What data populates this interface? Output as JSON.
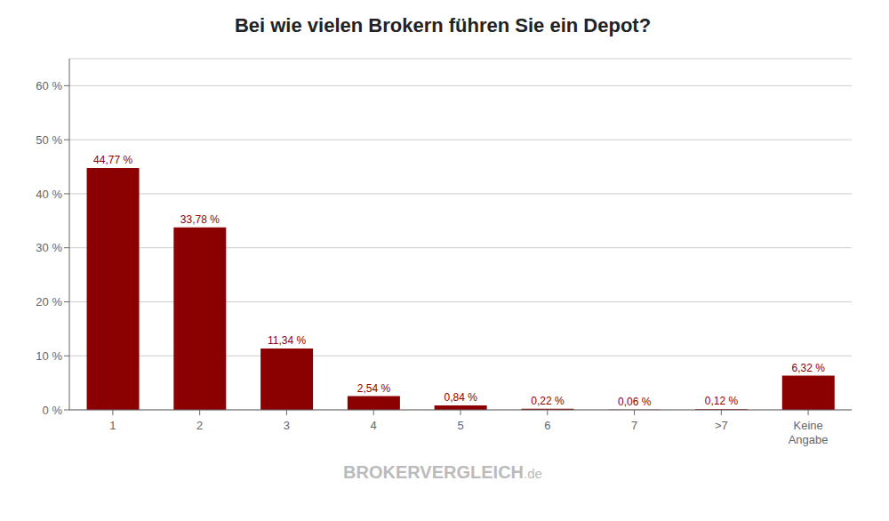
{
  "chart_data": {
    "type": "bar",
    "title": "Bei wie vielen Brokern führen Sie ein Depot?",
    "categories": [
      "1",
      "2",
      "3",
      "4",
      "5",
      "6",
      "7",
      ">7",
      "Keine\nAngabe"
    ],
    "values": [
      44.77,
      33.78,
      11.34,
      2.54,
      0.84,
      0.22,
      0.06,
      0.12,
      6.32
    ],
    "value_labels": [
      "44,77 %",
      "33,78 %",
      "11,34 %",
      "2,54 %",
      "0,84 %",
      "0,22 %",
      "0,06 %",
      "0,12 %",
      "6,32 %"
    ],
    "data_labels": true,
    "color": "#8B0000",
    "ylim": [
      0,
      65
    ],
    "yticks": [
      {
        "value": 0,
        "label": "0 %"
      },
      {
        "value": 10,
        "label": "10 %"
      },
      {
        "value": 20,
        "label": "20 %"
      },
      {
        "value": 30,
        "label": "30 %"
      },
      {
        "value": 40,
        "label": "40 %"
      },
      {
        "value": 50,
        "label": "50 %"
      },
      {
        "value": 60,
        "label": "60 %"
      }
    ],
    "grid": true,
    "annotations": [
      "BROKERVERGLEICH",
      ".de"
    ]
  }
}
